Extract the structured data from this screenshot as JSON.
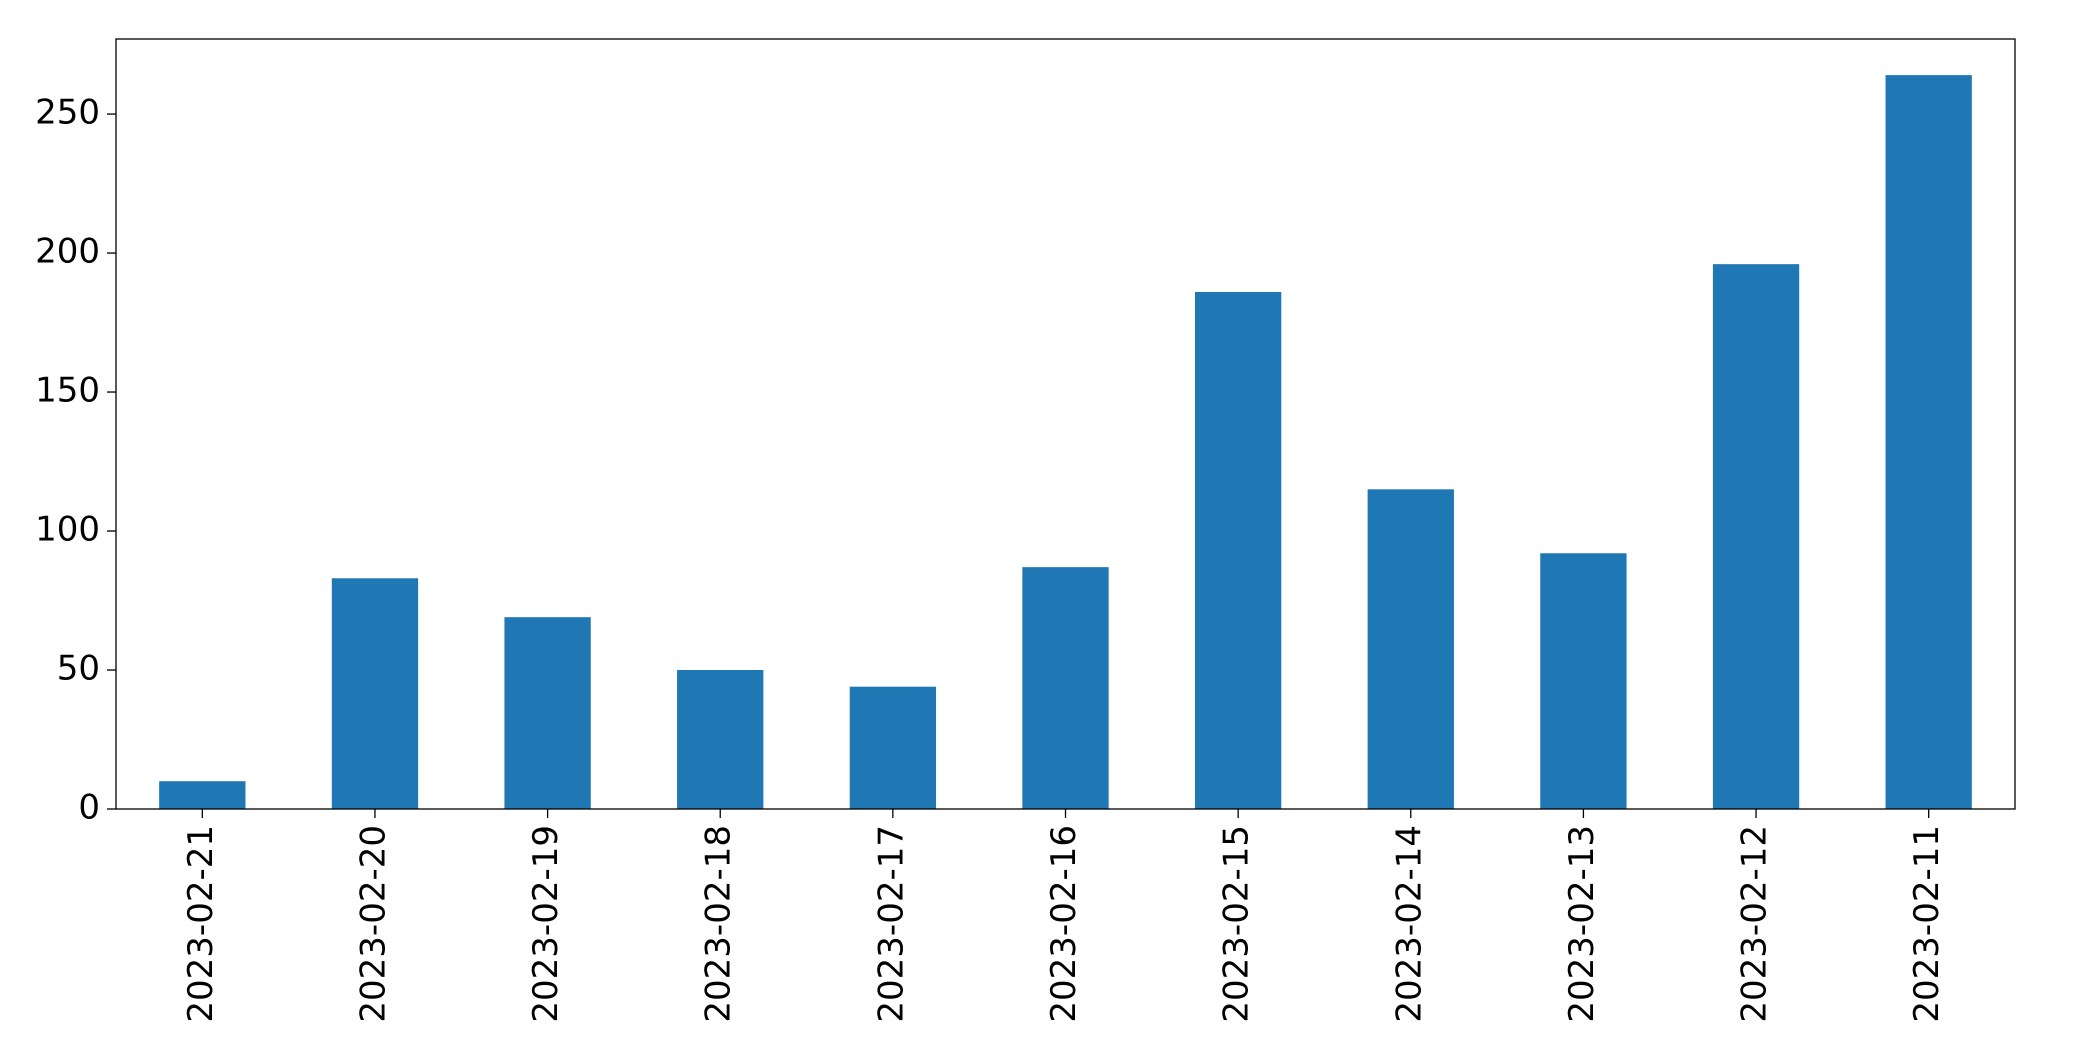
{
  "chart_data": {
    "type": "bar",
    "categories": [
      "2023-02-21",
      "2023-02-20",
      "2023-02-19",
      "2023-02-18",
      "2023-02-17",
      "2023-02-16",
      "2023-02-15",
      "2023-02-14",
      "2023-02-13",
      "2023-02-12",
      "2023-02-11"
    ],
    "values": [
      10,
      83,
      69,
      50,
      44,
      87,
      186,
      115,
      92,
      196,
      264
    ],
    "color": "#1f77b4",
    "ylim": [
      0,
      277
    ],
    "yticks": [
      0,
      50,
      100,
      150,
      200,
      250
    ],
    "grid": false
  }
}
